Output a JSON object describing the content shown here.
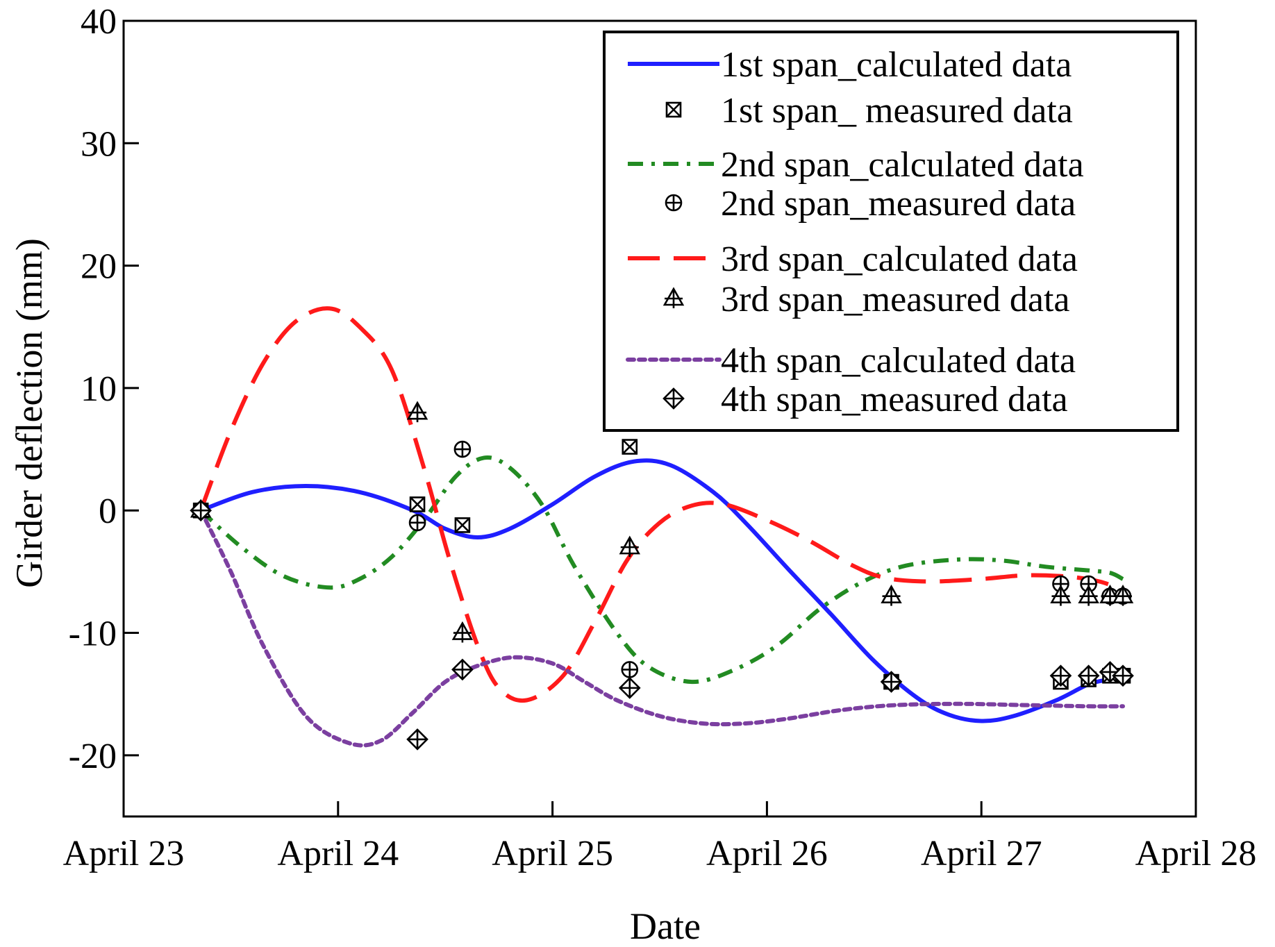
{
  "chart_data": {
    "type": "line",
    "title": "",
    "xlabel": "Date",
    "ylabel": "Girder deflection (mm)",
    "xlim": [
      0,
      5
    ],
    "ylim": [
      -25,
      40
    ],
    "xticks": [
      {
        "value": 0,
        "label": "April 23"
      },
      {
        "value": 1,
        "label": "April 24"
      },
      {
        "value": 2,
        "label": "April 25"
      },
      {
        "value": 3,
        "label": "April 26"
      },
      {
        "value": 4,
        "label": "April 27"
      },
      {
        "value": 5,
        "label": "April 28"
      }
    ],
    "yticks": [
      {
        "value": 40,
        "label": "40"
      },
      {
        "value": 30,
        "label": "30"
      },
      {
        "value": 20,
        "label": "20"
      },
      {
        "value": 10,
        "label": "10"
      },
      {
        "value": 0,
        "label": "0"
      },
      {
        "value": -10,
        "label": "-10"
      },
      {
        "value": -20,
        "label": "-20"
      }
    ],
    "grid": false,
    "legend_position": "top-right",
    "series": [
      {
        "name": "1st span_calculated data",
        "kind": "line",
        "style": "solid",
        "color": "#1f1fff",
        "points": [
          [
            0.36,
            0
          ],
          [
            0.6,
            1.5
          ],
          [
            0.85,
            2
          ],
          [
            1.1,
            1.5
          ],
          [
            1.35,
            0
          ],
          [
            1.5,
            -1.5
          ],
          [
            1.65,
            -2.2
          ],
          [
            1.8,
            -1.5
          ],
          [
            2.0,
            0.5
          ],
          [
            2.2,
            2.8
          ],
          [
            2.38,
            4
          ],
          [
            2.55,
            3.7
          ],
          [
            2.75,
            1.5
          ],
          [
            2.9,
            -1
          ],
          [
            3.1,
            -4.8
          ],
          [
            3.3,
            -8.5
          ],
          [
            3.5,
            -12.3
          ],
          [
            3.7,
            -15.3
          ],
          [
            3.85,
            -16.7
          ],
          [
            4.0,
            -17.2
          ],
          [
            4.15,
            -16.8
          ],
          [
            4.35,
            -15.5
          ],
          [
            4.5,
            -14.2
          ],
          [
            4.6,
            -13.8
          ],
          [
            4.66,
            -13.6
          ]
        ]
      },
      {
        "name": "1st span_ measured data",
        "kind": "marker",
        "marker": "square-x",
        "points": [
          [
            0.36,
            0
          ],
          [
            1.37,
            0.5
          ],
          [
            1.58,
            -1.2
          ],
          [
            2.36,
            5.2
          ],
          [
            3.58,
            -14
          ],
          [
            4.37,
            -14
          ],
          [
            4.5,
            -13.8
          ],
          [
            4.6,
            -13.5
          ],
          [
            4.66,
            -13.5
          ]
        ]
      },
      {
        "name": "2nd span_calculated data",
        "kind": "line",
        "style": "dashdot",
        "color": "#228B22",
        "points": [
          [
            0.36,
            0
          ],
          [
            0.55,
            -3
          ],
          [
            0.75,
            -5.4
          ],
          [
            0.96,
            -6.3
          ],
          [
            1.1,
            -5.6
          ],
          [
            1.25,
            -3.8
          ],
          [
            1.4,
            -0.8
          ],
          [
            1.55,
            2.8
          ],
          [
            1.68,
            4.3
          ],
          [
            1.8,
            3.5
          ],
          [
            1.95,
            0.5
          ],
          [
            2.1,
            -4.5
          ],
          [
            2.3,
            -10
          ],
          [
            2.45,
            -12.8
          ],
          [
            2.65,
            -14
          ],
          [
            2.85,
            -13
          ],
          [
            3.05,
            -11
          ],
          [
            3.25,
            -8
          ],
          [
            3.45,
            -5.8
          ],
          [
            3.65,
            -4.5
          ],
          [
            3.9,
            -4
          ],
          [
            4.1,
            -4.1
          ],
          [
            4.3,
            -4.6
          ],
          [
            4.5,
            -4.9
          ],
          [
            4.6,
            -5.1
          ],
          [
            4.66,
            -5.6
          ]
        ]
      },
      {
        "name": "2nd span_measured data",
        "kind": "marker",
        "marker": "circle-plus",
        "points": [
          [
            0.36,
            0
          ],
          [
            1.37,
            -1
          ],
          [
            1.58,
            5
          ],
          [
            2.36,
            -13
          ],
          [
            3.58,
            -14
          ],
          [
            4.37,
            -6
          ],
          [
            4.5,
            -6
          ],
          [
            4.6,
            -7
          ],
          [
            4.66,
            -7
          ]
        ]
      },
      {
        "name": "3rd span_calculated data",
        "kind": "line",
        "style": "longdash",
        "color": "#ff1a1a",
        "points": [
          [
            0.36,
            0
          ],
          [
            0.5,
            6.5
          ],
          [
            0.65,
            12
          ],
          [
            0.8,
            15.4
          ],
          [
            0.96,
            16.5
          ],
          [
            1.1,
            15
          ],
          [
            1.25,
            11.5
          ],
          [
            1.4,
            3.5
          ],
          [
            1.52,
            -4
          ],
          [
            1.65,
            -11
          ],
          [
            1.75,
            -14.5
          ],
          [
            1.88,
            -15.5
          ],
          [
            2.05,
            -13.5
          ],
          [
            2.2,
            -9
          ],
          [
            2.35,
            -4
          ],
          [
            2.5,
            -1
          ],
          [
            2.65,
            0.4
          ],
          [
            2.8,
            0.5
          ],
          [
            3.0,
            -0.8
          ],
          [
            3.2,
            -2.5
          ],
          [
            3.4,
            -4.5
          ],
          [
            3.55,
            -5.5
          ],
          [
            3.75,
            -5.8
          ],
          [
            4.0,
            -5.6
          ],
          [
            4.2,
            -5.3
          ],
          [
            4.4,
            -5.4
          ],
          [
            4.55,
            -5.8
          ],
          [
            4.66,
            -6.5
          ]
        ]
      },
      {
        "name": "3rd span_measured data",
        "kind": "marker",
        "marker": "triangle-plus",
        "points": [
          [
            0.36,
            0
          ],
          [
            1.37,
            8
          ],
          [
            1.58,
            -10
          ],
          [
            2.36,
            -3
          ],
          [
            3.58,
            -7
          ],
          [
            4.37,
            -7
          ],
          [
            4.5,
            -7
          ],
          [
            4.6,
            -7
          ],
          [
            4.66,
            -7
          ]
        ]
      },
      {
        "name": "4th span_calculated data",
        "kind": "line",
        "style": "dotted",
        "color": "#7b3fa0",
        "points": [
          [
            0.36,
            0
          ],
          [
            0.5,
            -5
          ],
          [
            0.65,
            -11
          ],
          [
            0.85,
            -16.8
          ],
          [
            1.05,
            -19
          ],
          [
            1.2,
            -18.8
          ],
          [
            1.35,
            -16.5
          ],
          [
            1.5,
            -14
          ],
          [
            1.65,
            -12.7
          ],
          [
            1.82,
            -12
          ],
          [
            2.0,
            -12.5
          ],
          [
            2.15,
            -14
          ],
          [
            2.3,
            -15.5
          ],
          [
            2.5,
            -16.8
          ],
          [
            2.7,
            -17.4
          ],
          [
            2.9,
            -17.4
          ],
          [
            3.1,
            -17
          ],
          [
            3.35,
            -16.3
          ],
          [
            3.6,
            -15.9
          ],
          [
            3.9,
            -15.8
          ],
          [
            4.2,
            -15.9
          ],
          [
            4.5,
            -16
          ],
          [
            4.66,
            -16
          ]
        ]
      },
      {
        "name": "4th span_measured data",
        "kind": "marker",
        "marker": "diamond-plus",
        "points": [
          [
            0.36,
            0
          ],
          [
            1.37,
            -18.7
          ],
          [
            1.58,
            -13
          ],
          [
            2.36,
            -14.5
          ],
          [
            3.58,
            -14
          ],
          [
            4.37,
            -13.5
          ],
          [
            4.5,
            -13.5
          ],
          [
            4.6,
            -13.2
          ],
          [
            4.66,
            -13.5
          ]
        ]
      }
    ]
  }
}
